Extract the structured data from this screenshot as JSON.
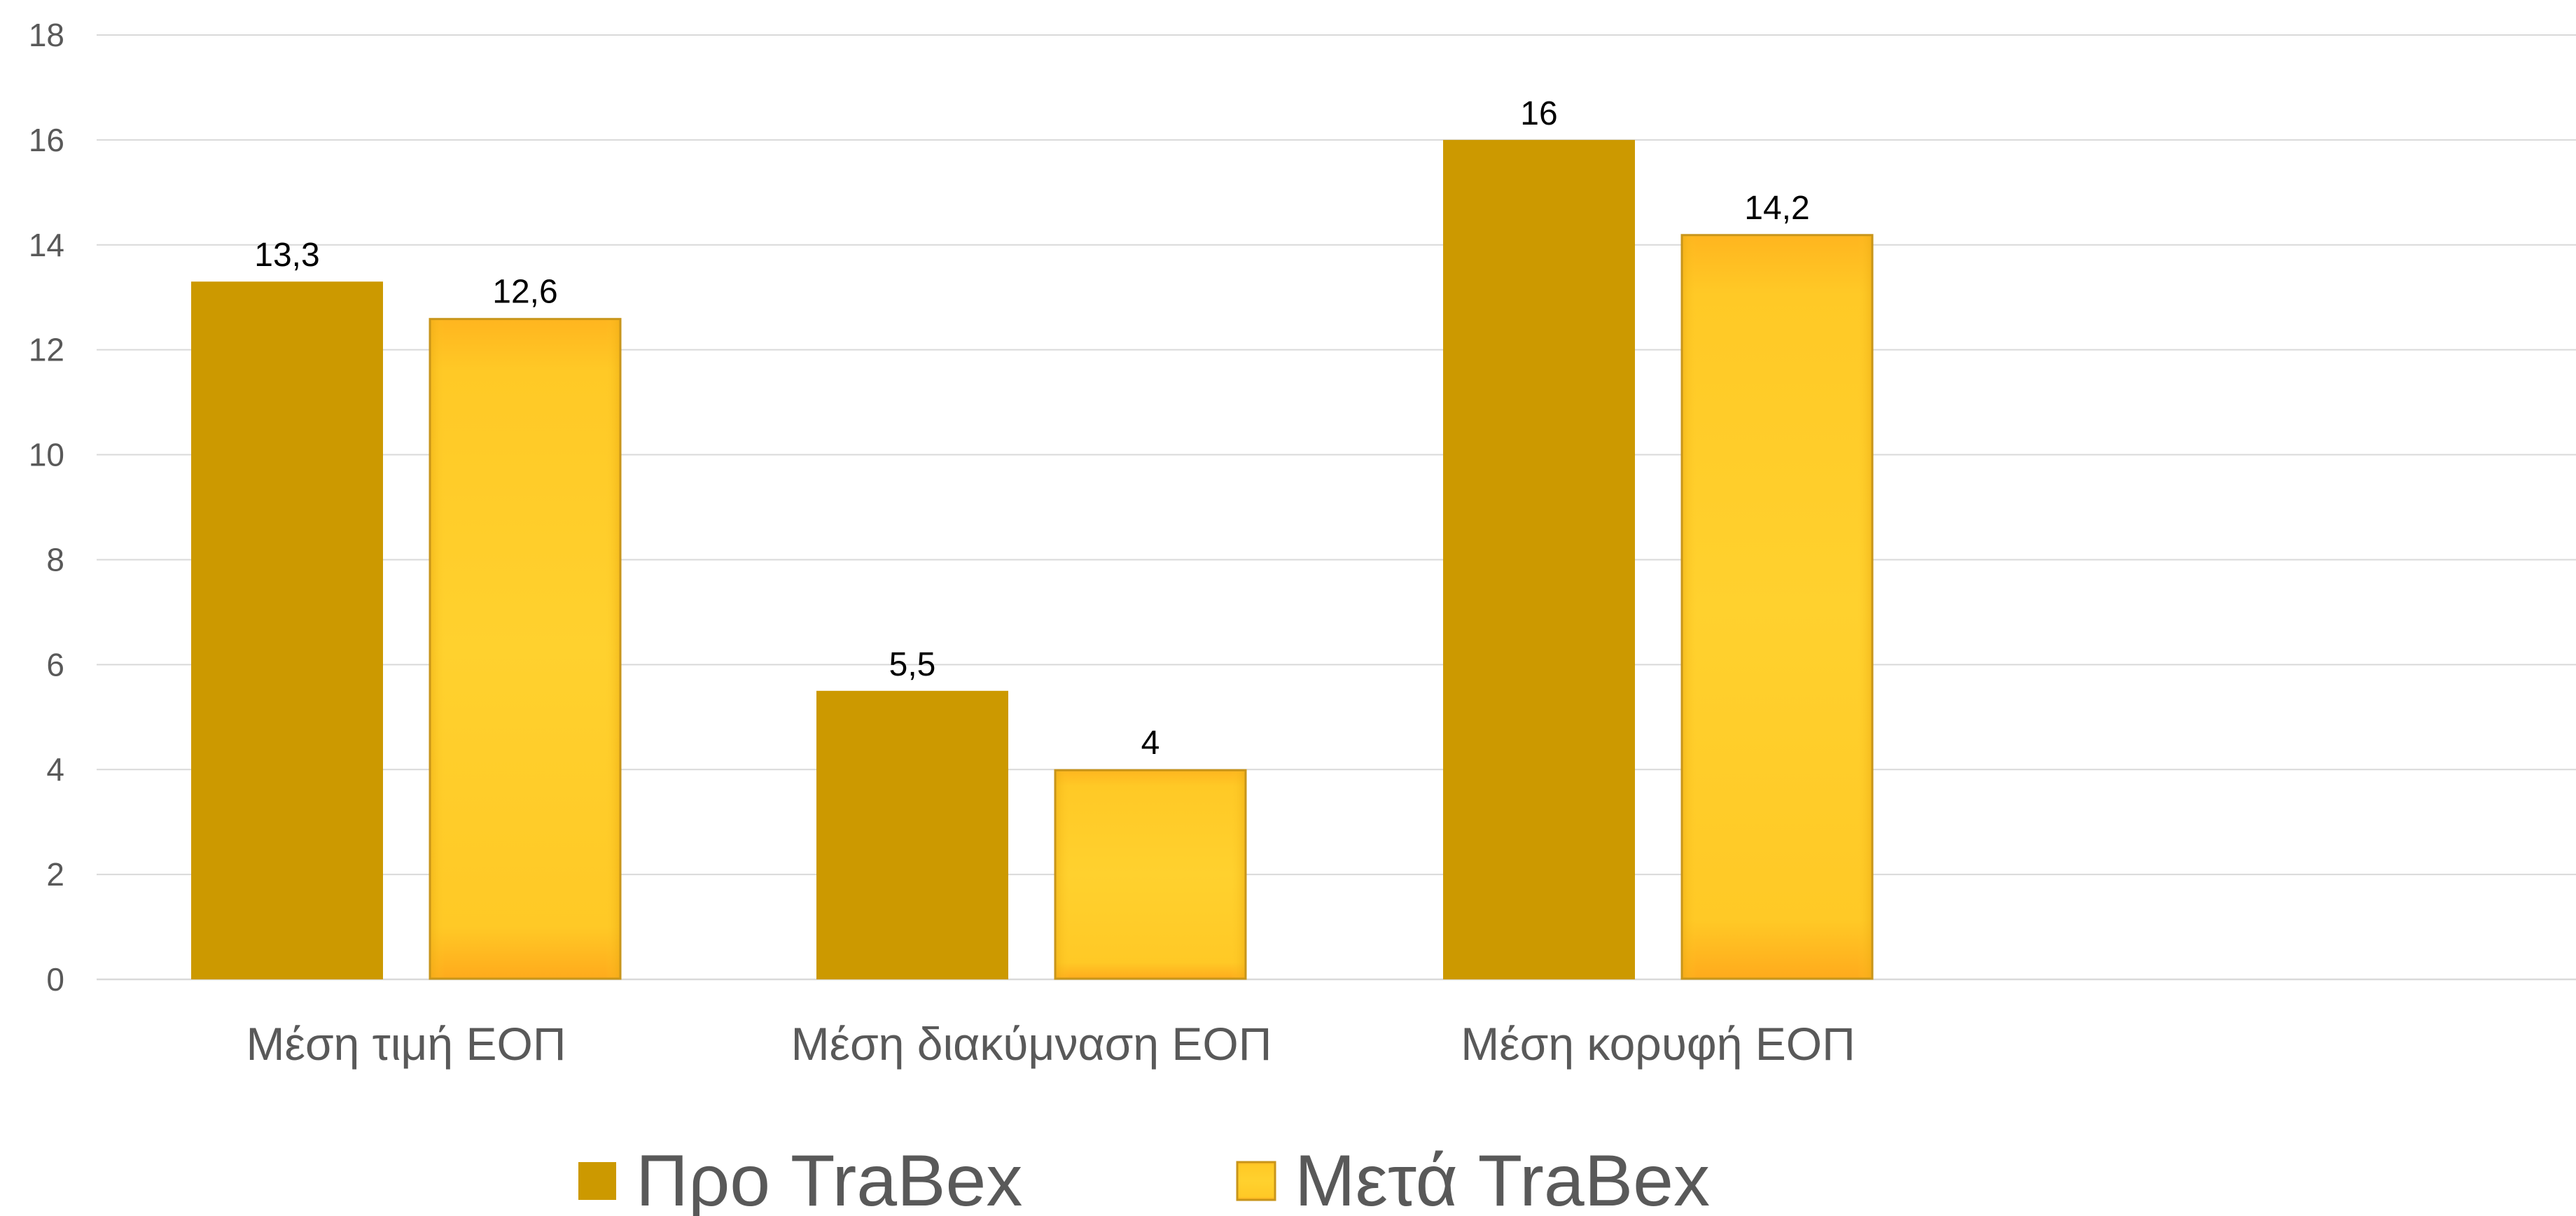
{
  "chart_data": {
    "type": "bar",
    "categories": [
      "Μέση τιμή ΕΟΠ",
      "Μέση διακύμναση ΕΟΠ",
      "Μέση κορυφή ΕΟΠ"
    ],
    "series": [
      {
        "name": "Προ TraBex",
        "values": [
          13.3,
          5.5,
          16
        ],
        "labels": [
          "13,3",
          "5,5",
          "16"
        ],
        "color": "#CC9900"
      },
      {
        "name": "Μετά TraBex",
        "values": [
          12.6,
          4,
          14.2
        ],
        "labels": [
          "12,6",
          "4",
          "14,2"
        ],
        "color": "#FFC926"
      }
    ],
    "ylim": [
      0,
      18
    ],
    "yticks": [
      0,
      2,
      4,
      6,
      8,
      10,
      12,
      14,
      16,
      18
    ],
    "grid": true,
    "legend": "bottom"
  }
}
